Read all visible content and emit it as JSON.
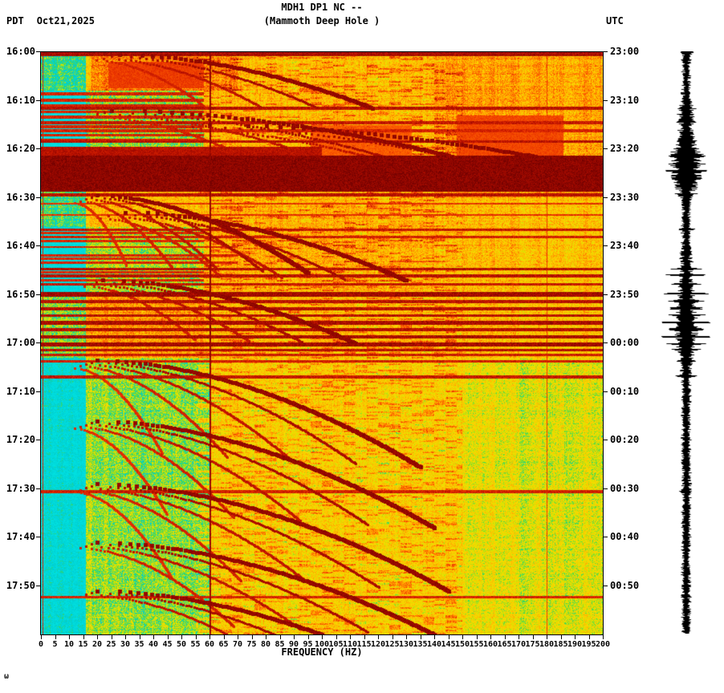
{
  "header": {
    "station": "MDH1 DP1 NC --",
    "subtitle": "(Mammoth Deep Hole )",
    "left_tz": "PDT",
    "date": "Oct21,2025",
    "right_tz": "UTC"
  },
  "footer": {
    "corner_mark": "ω"
  },
  "chart_data": {
    "type": "heatmap",
    "title": "MDH1 DP1 NC --",
    "subtitle": "(Mammoth Deep Hole )",
    "xlabel": "FREQUENCY (HZ)",
    "x_min_hz": 0,
    "x_max_hz": 200,
    "duration_min": 120,
    "x_ticks": [
      0,
      5,
      10,
      15,
      20,
      25,
      30,
      35,
      40,
      45,
      50,
      55,
      60,
      65,
      70,
      75,
      80,
      85,
      90,
      95,
      100,
      105,
      110,
      115,
      120,
      125,
      130,
      135,
      140,
      145,
      150,
      155,
      160,
      165,
      170,
      175,
      180,
      185,
      190,
      195,
      200
    ],
    "left_ticks": [
      "16:00",
      "16:10",
      "16:20",
      "16:30",
      "16:40",
      "16:50",
      "17:00",
      "17:10",
      "17:20",
      "17:30",
      "17:40",
      "17:50"
    ],
    "right_ticks": [
      "23:00",
      "23:10",
      "23:20",
      "23:30",
      "23:40",
      "23:50",
      "00:00",
      "00:10",
      "00:20",
      "00:30",
      "00:40",
      "00:50"
    ],
    "palette_stops": [
      [
        0,
        "#00e0e0"
      ],
      [
        0.18,
        "#00ced2"
      ],
      [
        0.27,
        "#3fd94f"
      ],
      [
        0.36,
        "#d8e600"
      ],
      [
        0.5,
        "#ffd400"
      ],
      [
        0.62,
        "#ffa200"
      ],
      [
        0.72,
        "#ff6400"
      ],
      [
        0.82,
        "#e83000"
      ],
      [
        0.9,
        "#b80f00"
      ],
      [
        1,
        "#6e0000"
      ]
    ],
    "vertical_lines": [
      [
        0.5,
        1,
        0.85
      ],
      [
        60,
        2,
        0.95
      ],
      [
        180,
        1,
        0.8
      ]
    ],
    "region_boosts": [
      [
        0,
        30,
        140,
        200,
        0.07
      ],
      [
        0,
        8,
        18,
        70,
        0.12
      ],
      [
        8,
        21.5,
        0,
        58,
        -0.24
      ],
      [
        36,
        50,
        0,
        58,
        -0.2
      ],
      [
        50,
        63,
        0,
        58,
        0.08
      ],
      [
        63,
        120,
        18,
        60,
        -0.13
      ],
      [
        63,
        120,
        150,
        200,
        -0.05
      ],
      [
        63,
        120,
        0,
        18,
        -0.06
      ],
      [
        30,
        50,
        60,
        140,
        0.03
      ]
    ],
    "dark_patches": [
      [
        21.3,
        28.8,
        0,
        200,
        0.96
      ],
      [
        19.5,
        21.3,
        0,
        100,
        0.9
      ],
      [
        13.0,
        22.0,
        148,
        186,
        0.78
      ],
      [
        15.0,
        22.0,
        96,
        132,
        0.74
      ],
      [
        2.0,
        7.5,
        24,
        58,
        0.8
      ]
    ],
    "broadband_lines": [
      [
        0.4,
        0.5,
        0,
        200,
        0.92
      ],
      [
        8.6,
        0.3,
        0,
        58,
        0.85
      ],
      [
        9.9,
        0.3,
        0,
        58,
        0.85
      ],
      [
        11.0,
        0.3,
        0,
        58,
        0.85
      ],
      [
        11.6,
        0.35,
        0,
        200,
        0.9
      ],
      [
        12.3,
        0.3,
        0,
        58,
        0.85
      ],
      [
        13.4,
        0.3,
        0,
        58,
        0.85
      ],
      [
        14.5,
        0.3,
        0,
        200,
        0.88
      ],
      [
        15.4,
        0.3,
        0,
        58,
        0.85
      ],
      [
        16.2,
        0.25,
        0,
        200,
        0.85
      ],
      [
        17.1,
        0.3,
        0,
        58,
        0.85
      ],
      [
        18.1,
        0.3,
        0,
        58,
        0.85
      ],
      [
        18.4,
        0.3,
        0,
        200,
        0.9
      ],
      [
        20.4,
        0.3,
        0,
        58,
        0.86
      ],
      [
        29.4,
        0.35,
        0,
        200,
        0.9
      ],
      [
        31.2,
        0.2,
        0,
        200,
        0.82
      ],
      [
        33.6,
        0.2,
        0,
        200,
        0.82
      ],
      [
        36.6,
        0.3,
        0,
        200,
        0.88
      ],
      [
        37.3,
        0.25,
        0,
        58,
        0.84
      ],
      [
        38.1,
        0.25,
        0,
        200,
        0.86
      ],
      [
        39.0,
        0.25,
        0,
        58,
        0.84
      ],
      [
        40.2,
        0.2,
        0,
        70,
        0.85
      ],
      [
        41.9,
        0.2,
        0,
        70,
        0.85
      ],
      [
        42.6,
        0.25,
        0,
        58,
        0.84
      ],
      [
        43.4,
        0.2,
        0,
        70,
        0.85
      ],
      [
        44.7,
        0.3,
        0,
        200,
        0.9
      ],
      [
        45.4,
        0.25,
        0,
        58,
        0.84
      ],
      [
        46.1,
        0.3,
        0,
        200,
        0.9
      ],
      [
        47.1,
        0.25,
        0,
        58,
        0.84
      ],
      [
        47.9,
        0.25,
        0,
        200,
        0.88
      ],
      [
        49.9,
        0.5,
        0,
        200,
        0.93
      ],
      [
        51.4,
        0.3,
        0,
        200,
        0.9
      ],
      [
        52.9,
        0.3,
        0,
        200,
        0.9
      ],
      [
        54.3,
        0.3,
        0,
        200,
        0.9
      ],
      [
        55.8,
        0.35,
        0,
        200,
        0.92
      ],
      [
        57.2,
        0.3,
        0,
        200,
        0.9
      ],
      [
        58.7,
        0.35,
        0,
        200,
        0.92
      ],
      [
        60.2,
        0.4,
        0,
        200,
        0.93
      ],
      [
        61.4,
        0.3,
        0,
        200,
        0.9
      ],
      [
        62.4,
        0.25,
        0,
        200,
        0.87
      ],
      [
        63.7,
        0.25,
        0,
        200,
        0.86
      ],
      [
        66.9,
        0.3,
        0,
        200,
        0.88
      ],
      [
        90.6,
        0.3,
        0,
        200,
        0.86
      ],
      [
        112.3,
        0.25,
        0,
        200,
        0.85
      ]
    ],
    "glide_families": [
      [
        0.5,
        11,
        28,
        118,
        4
      ],
      [
        12,
        10,
        25,
        150,
        4
      ],
      [
        15,
        8,
        60,
        190,
        3
      ],
      [
        29.5,
        16,
        20,
        95,
        5
      ],
      [
        33,
        14,
        30,
        130,
        4
      ],
      [
        47,
        13,
        22,
        112,
        4
      ],
      [
        63.5,
        22,
        20,
        135,
        5
      ],
      [
        76,
        22,
        20,
        140,
        5
      ],
      [
        89,
        22,
        20,
        145,
        5
      ],
      [
        101,
        19,
        20,
        140,
        4
      ],
      [
        111,
        9,
        20,
        100,
        3
      ]
    ],
    "waveform": {
      "envelope": [
        [
          0,
          7
        ],
        [
          1,
          5
        ],
        [
          3,
          4
        ],
        [
          6,
          3.5
        ],
        [
          10,
          5
        ],
        [
          12,
          7
        ],
        [
          14,
          8
        ],
        [
          16,
          7
        ],
        [
          18,
          8
        ],
        [
          20,
          11
        ],
        [
          22,
          17
        ],
        [
          24,
          16
        ],
        [
          26,
          13
        ],
        [
          28,
          10
        ],
        [
          30,
          6
        ],
        [
          33,
          4.5
        ],
        [
          36,
          4
        ],
        [
          40,
          4.5
        ],
        [
          44,
          6
        ],
        [
          48,
          7
        ],
        [
          52,
          8
        ],
        [
          56,
          10
        ],
        [
          58,
          11
        ],
        [
          60,
          9
        ],
        [
          62,
          7
        ],
        [
          64,
          5.5
        ],
        [
          67,
          5
        ],
        [
          70,
          4
        ],
        [
          75,
          4
        ],
        [
          80,
          4
        ],
        [
          85,
          4
        ],
        [
          90,
          4.5
        ],
        [
          95,
          4
        ],
        [
          100,
          4
        ],
        [
          105,
          4
        ],
        [
          110,
          4
        ],
        [
          115,
          4
        ],
        [
          120,
          4
        ]
      ],
      "spikes": [
        [
          11.6,
          10
        ],
        [
          14.5,
          12
        ],
        [
          18.4,
          10
        ],
        [
          21.5,
          20
        ],
        [
          23,
          22
        ],
        [
          24.5,
          21
        ],
        [
          26,
          18
        ],
        [
          29.4,
          12
        ],
        [
          36.6,
          9
        ],
        [
          44.7,
          16
        ],
        [
          46.1,
          20
        ],
        [
          47.9,
          15
        ],
        [
          49.9,
          24
        ],
        [
          51.4,
          19
        ],
        [
          52.9,
          22
        ],
        [
          54.3,
          20
        ],
        [
          55.8,
          26
        ],
        [
          57.2,
          23
        ],
        [
          58.7,
          27
        ],
        [
          60.2,
          22
        ],
        [
          61.4,
          17
        ],
        [
          63.7,
          10
        ],
        [
          66.9,
          11
        ],
        [
          90.6,
          8
        ],
        [
          112.3,
          7
        ]
      ]
    }
  }
}
